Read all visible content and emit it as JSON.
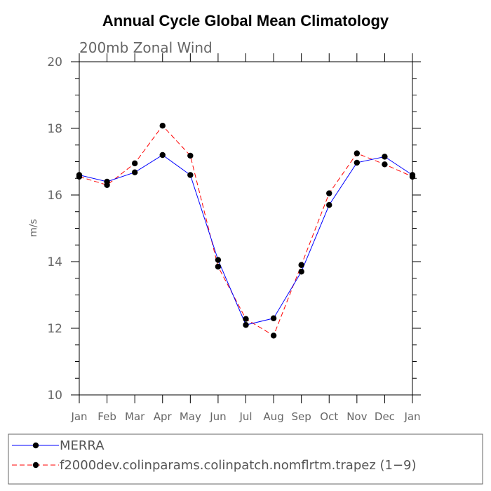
{
  "chart_data": {
    "type": "line",
    "title": "Annual Cycle Global Mean Climatology",
    "subtitle": "200mb Zonal Wind",
    "ylabel": "m/s",
    "xlabel": "",
    "ylim": [
      10,
      20
    ],
    "yticks": [
      10,
      12,
      14,
      16,
      18,
      20
    ],
    "yticks_minor_step": 0.5,
    "categories": [
      "Jan",
      "Feb",
      "Mar",
      "Apr",
      "May",
      "Jun",
      "Jul",
      "Aug",
      "Sep",
      "Oct",
      "Nov",
      "Dec",
      "Jan"
    ],
    "series": [
      {
        "name": "MERRA",
        "color": "#0000ff",
        "dash": "solid",
        "marker": "circle",
        "values": [
          16.6,
          16.4,
          16.68,
          17.2,
          16.6,
          14.05,
          12.1,
          12.3,
          13.7,
          15.7,
          16.97,
          17.15,
          16.6
        ]
      },
      {
        "name": "f2000dev.colinparams.colinpatch.nomflrtm.trapez (1−9)",
        "color": "#ff0000",
        "dash": "dashed",
        "marker": "circle",
        "values": [
          16.55,
          16.3,
          16.95,
          18.08,
          17.18,
          13.85,
          12.28,
          11.78,
          13.9,
          16.05,
          17.25,
          16.92,
          16.55
        ]
      }
    ],
    "legend": "bottom"
  }
}
